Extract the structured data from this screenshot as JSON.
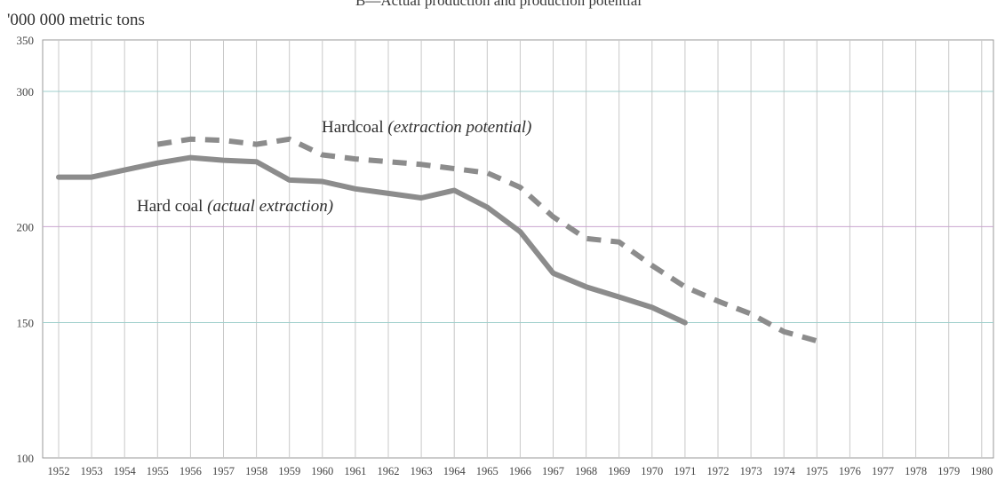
{
  "subtitle": "B—Actual production and production potential",
  "unit_label": "'000 000 metric tons",
  "annotations": {
    "potential_main": "Hardcoal",
    "potential_paren": "(extraction potential)",
    "actual_main": "Hard coal",
    "actual_paren": "(actual extraction)"
  },
  "colors": {
    "series": "#8c8c8c",
    "hgrid": "#9fcfcc",
    "hgrid_200": "#c9a6cf",
    "vgrid": "#c8c8c8",
    "axis": "#9a9a9a",
    "tick_text": "#444444"
  },
  "chart_data": {
    "type": "line",
    "title": "B—Actual production and production potential",
    "ylabel": "'000 000 metric tons",
    "y_scale": "log",
    "ylim": [
      100,
      350
    ],
    "yticks": [
      100,
      150,
      200,
      300,
      350
    ],
    "xlim": [
      1952,
      1980
    ],
    "x_ticks": [
      1952,
      1953,
      1954,
      1955,
      1956,
      1957,
      1958,
      1959,
      1960,
      1961,
      1962,
      1963,
      1964,
      1965,
      1966,
      1967,
      1968,
      1969,
      1970,
      1971,
      1972,
      1973,
      1974,
      1975,
      1976,
      1977,
      1978,
      1979,
      1980
    ],
    "grid": true,
    "series": [
      {
        "name": "Hardcoal (extraction potential)",
        "style": "dashed",
        "x": [
          1955,
          1956,
          1957,
          1958,
          1959,
          1960,
          1961,
          1962,
          1963,
          1964,
          1965,
          1966,
          1967,
          1968,
          1969,
          1970,
          1971,
          1972,
          1973,
          1974,
          1975
        ],
        "y": [
          256,
          260,
          259,
          256,
          260,
          248,
          245,
          243,
          241,
          238,
          235,
          225,
          206,
          193,
          191,
          178,
          167,
          160,
          154,
          146,
          142
        ]
      },
      {
        "name": "Hard coal (actual extraction)",
        "style": "solid",
        "x": [
          1952,
          1953,
          1954,
          1955,
          1956,
          1957,
          1958,
          1959,
          1960,
          1961,
          1962,
          1963,
          1964,
          1965,
          1966,
          1967,
          1968,
          1969,
          1970,
          1971
        ],
        "y": [
          232,
          232,
          237,
          242,
          246,
          244,
          243,
          230,
          229,
          224,
          221,
          218,
          223,
          212,
          197,
          174,
          167,
          162,
          157,
          150
        ]
      }
    ]
  }
}
